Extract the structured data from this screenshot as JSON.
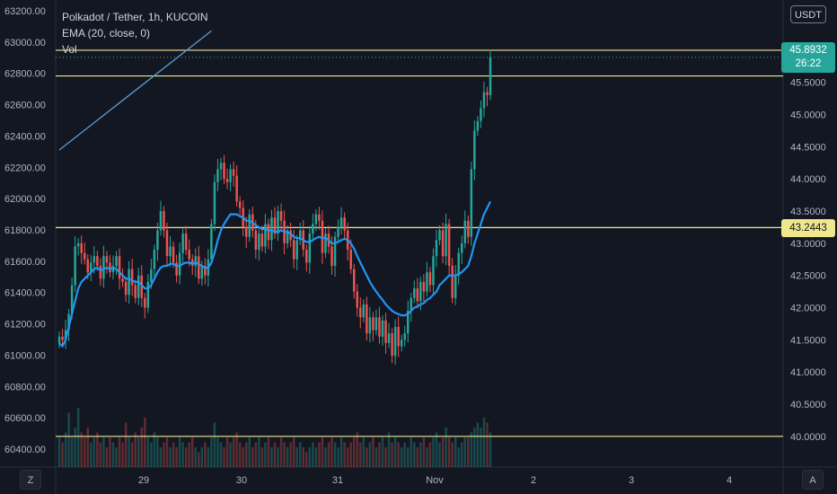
{
  "legend": {
    "symbol": "Polkadot / Tether, 1h, KUCOIN",
    "ema": "EMA (20, close, 0)",
    "vol": "Vol"
  },
  "currency_button": "USDT",
  "price_tag": {
    "price": "45.8932",
    "countdown": "26:22"
  },
  "level_tag": "43.2443",
  "corner_left": "Z",
  "corner_right": "A",
  "colors": {
    "background": "#131722",
    "up": "#26a69a",
    "down": "#ef5350",
    "ema": "#2196f3",
    "level": "#f0e68c",
    "trendline": "#5b9bd5",
    "price_tag": "#26a69a"
  },
  "chart_data": {
    "type": "candlestick",
    "title": "Polkadot / Tether, 1h, KUCOIN",
    "left_axis": {
      "ticks": [
        63200,
        63000,
        62800,
        62600,
        62400,
        62200,
        62000,
        61800,
        61600,
        61400,
        61200,
        61000,
        60800,
        60600,
        60400
      ]
    },
    "right_axis": {
      "ticks": [
        "46.0000",
        "45.5000",
        "45.0000",
        "44.5000",
        "44.0000",
        "43.5000",
        "43.0000",
        "42.5000",
        "42.0000",
        "41.5000",
        "41.0000",
        "40.5000",
        "40.0000"
      ],
      "range": [
        39.9,
        46.25
      ]
    },
    "x_axis": {
      "ticks": [
        "29",
        "30",
        "31",
        "Nov",
        "2",
        "3",
        "4"
      ]
    },
    "horizontal_levels": [
      46.0,
      45.6,
      43.2443,
      40.0
    ],
    "trendline": {
      "from": [
        0,
        44.45
      ],
      "to": [
        48,
        46.3
      ]
    },
    "closes": [
      41.55,
      41.5,
      41.65,
      41.9,
      42.35,
      42.95,
      43.0,
      42.85,
      42.75,
      42.55,
      42.7,
      42.8,
      42.65,
      42.45,
      42.8,
      42.7,
      42.55,
      42.65,
      42.8,
      42.45,
      42.4,
      42.2,
      42.6,
      42.35,
      42.15,
      42.5,
      42.15,
      42.0,
      42.4,
      42.6,
      42.9,
      43.2,
      43.5,
      43.2,
      42.8,
      42.95,
      42.7,
      42.5,
      42.85,
      43.15,
      42.9,
      42.75,
      42.65,
      42.8,
      42.45,
      42.65,
      42.5,
      42.75,
      43.3,
      43.95,
      44.15,
      44.25,
      44.0,
      43.95,
      44.15,
      44.05,
      43.65,
      43.55,
      43.25,
      43.1,
      43.45,
      43.2,
      42.9,
      43.15,
      42.95,
      43.3,
      43.05,
      43.4,
      43.15,
      43.5,
      43.35,
      43.0,
      43.2,
      43.05,
      42.75,
      43.05,
      43.2,
      42.9,
      42.7,
      43.15,
      43.3,
      43.45,
      43.35,
      42.85,
      43.15,
      42.95,
      42.65,
      43.1,
      43.25,
      43.4,
      43.2,
      42.9,
      42.6,
      42.25,
      42.0,
      41.85,
      42.05,
      41.6,
      41.85,
      41.65,
      41.85,
      41.55,
      41.8,
      41.45,
      41.6,
      41.25,
      41.7,
      41.4,
      41.5,
      41.6,
      41.95,
      42.15,
      42.3,
      42.1,
      42.4,
      42.25,
      42.55,
      42.35,
      42.8,
      43.05,
      43.2,
      42.8,
      43.3,
      42.65,
      42.15,
      42.5,
      42.85,
      43.0,
      43.35,
      43.1,
      44.15,
      44.75,
      44.9,
      45.1,
      45.35,
      45.3,
      45.89
    ],
    "ema": [
      41.45,
      41.4,
      41.5,
      41.7,
      41.9,
      42.1,
      42.3,
      42.4,
      42.45,
      42.5,
      42.55,
      42.6,
      42.62,
      42.58,
      42.6,
      42.62,
      42.6,
      42.62,
      42.6,
      42.55,
      42.5,
      42.45,
      42.45,
      42.42,
      42.4,
      42.4,
      42.35,
      42.3,
      42.3,
      42.35,
      42.45,
      42.55,
      42.62,
      42.65,
      42.65,
      42.68,
      42.68,
      42.65,
      42.65,
      42.68,
      42.7,
      42.7,
      42.68,
      42.7,
      42.68,
      42.65,
      42.62,
      42.62,
      42.7,
      42.85,
      43.05,
      43.2,
      43.3,
      43.38,
      43.45,
      43.45,
      43.45,
      43.42,
      43.4,
      43.35,
      43.35,
      43.32,
      43.28,
      43.25,
      43.22,
      43.22,
      43.2,
      43.2,
      43.18,
      43.18,
      43.2,
      43.18,
      43.17,
      43.15,
      43.1,
      43.08,
      43.08,
      43.05,
      43.02,
      43.02,
      43.05,
      43.08,
      43.1,
      43.08,
      43.08,
      43.05,
      43.0,
      43.0,
      43.02,
      43.05,
      43.07,
      43.05,
      43.0,
      42.92,
      42.8,
      42.7,
      42.6,
      42.5,
      42.4,
      42.32,
      42.25,
      42.18,
      42.12,
      42.05,
      42.0,
      41.95,
      41.92,
      41.9,
      41.88,
      41.88,
      41.9,
      41.95,
      42.0,
      42.02,
      42.05,
      42.07,
      42.12,
      42.15,
      42.2,
      42.25,
      42.35,
      42.4,
      42.45,
      42.5,
      42.5,
      42.5,
      42.52,
      42.55,
      42.6,
      42.65,
      42.8,
      43.0,
      43.15,
      43.3,
      43.45,
      43.55,
      43.65
    ],
    "volumes": [
      0.3,
      0.25,
      0.35,
      0.55,
      0.3,
      0.4,
      0.6,
      0.35,
      0.3,
      0.4,
      0.25,
      0.3,
      0.35,
      0.25,
      0.3,
      0.2,
      0.3,
      0.25,
      0.2,
      0.3,
      0.25,
      0.45,
      0.3,
      0.25,
      0.35,
      0.3,
      0.4,
      0.5,
      0.3,
      0.25,
      0.35,
      0.3,
      0.2,
      0.25,
      0.3,
      0.2,
      0.25,
      0.2,
      0.3,
      0.25,
      0.2,
      0.25,
      0.3,
      0.2,
      0.15,
      0.2,
      0.25,
      0.2,
      0.3,
      0.45,
      0.3,
      0.25,
      0.2,
      0.3,
      0.25,
      0.3,
      0.35,
      0.25,
      0.2,
      0.25,
      0.3,
      0.2,
      0.25,
      0.3,
      0.2,
      0.25,
      0.3,
      0.2,
      0.25,
      0.2,
      0.3,
      0.25,
      0.2,
      0.25,
      0.3,
      0.2,
      0.25,
      0.2,
      0.15,
      0.2,
      0.25,
      0.2,
      0.25,
      0.3,
      0.2,
      0.25,
      0.3,
      0.25,
      0.2,
      0.3,
      0.25,
      0.2,
      0.25,
      0.3,
      0.35,
      0.25,
      0.3,
      0.2,
      0.25,
      0.3,
      0.2,
      0.25,
      0.3,
      0.2,
      0.35,
      0.25,
      0.3,
      0.25,
      0.2,
      0.25,
      0.2,
      0.3,
      0.25,
      0.2,
      0.25,
      0.3,
      0.2,
      0.25,
      0.3,
      0.35,
      0.25,
      0.3,
      0.4,
      0.3,
      0.25,
      0.3,
      0.2,
      0.25,
      0.3,
      0.3,
      0.35,
      0.4,
      0.45,
      0.4,
      0.5,
      0.45,
      0.35
    ]
  }
}
